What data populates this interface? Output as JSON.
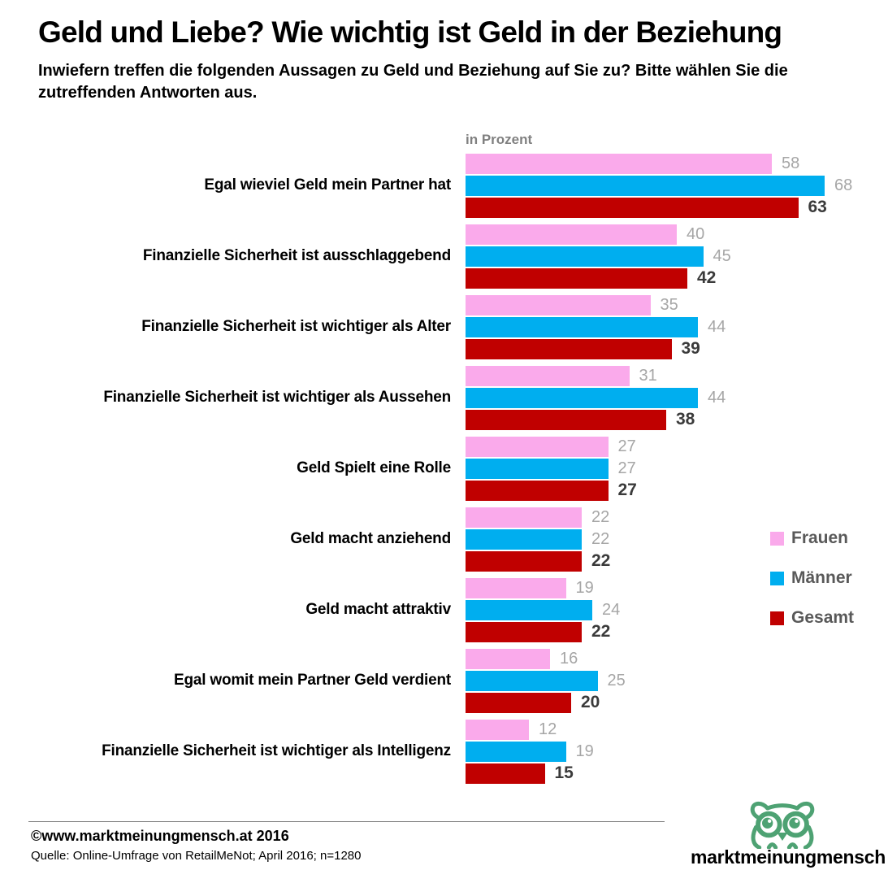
{
  "header": {
    "title": "Geld und Liebe? Wie wichtig ist Geld in der Beziehung",
    "subtitle": "Inwiefern treffen die folgenden Aussagen zu Geld und Beziehung auf Sie zu? Bitte wählen Sie die zutreffenden Antworten aus."
  },
  "chart_data": {
    "type": "bar",
    "orientation": "horizontal",
    "unit_label": "in Prozent",
    "xlim": [
      0,
      100
    ],
    "grid": false,
    "legend_position": "right-middle",
    "categories": [
      "Egal wieviel Geld mein Partner hat",
      "Finanzielle Sicherheit ist ausschlaggebend",
      "Finanzielle Sicherheit ist wichtiger als Alter",
      "Finanzielle Sicherheit ist wichtiger als Aussehen",
      "Geld Spielt eine Rolle",
      "Geld macht anziehend",
      "Geld macht attraktiv",
      "Egal womit mein Partner Geld verdient",
      "Finanzielle Sicherheit ist wichtiger als Intelligenz"
    ],
    "series": [
      {
        "name": "Frauen",
        "key": "frauen",
        "color": "#FAAAEB",
        "values": [
          58,
          40,
          35,
          31,
          27,
          22,
          19,
          16,
          12
        ]
      },
      {
        "name": "Männer",
        "key": "maenner",
        "color": "#00AEEF",
        "values": [
          68,
          45,
          44,
          44,
          27,
          22,
          24,
          25,
          19
        ]
      },
      {
        "name": "Gesamt",
        "key": "gesamt",
        "color": "#C00000",
        "values": [
          63,
          42,
          39,
          38,
          27,
          22,
          22,
          20,
          15
        ]
      }
    ],
    "value_label_colors": {
      "default": "#A6A6A6",
      "total": "#3A3A3A"
    }
  },
  "footer": {
    "copyright": "©www.marktmeinungmensch.at 2016",
    "source": "Quelle: Online-Umfrage von RetailMeNot; April 2016; n=1280"
  },
  "logo": {
    "icon": "owl-icon",
    "part1": "markt",
    "part2": "meinung",
    "part3": "mensch",
    "green": "#4EA273",
    "gray": "#58595B"
  }
}
